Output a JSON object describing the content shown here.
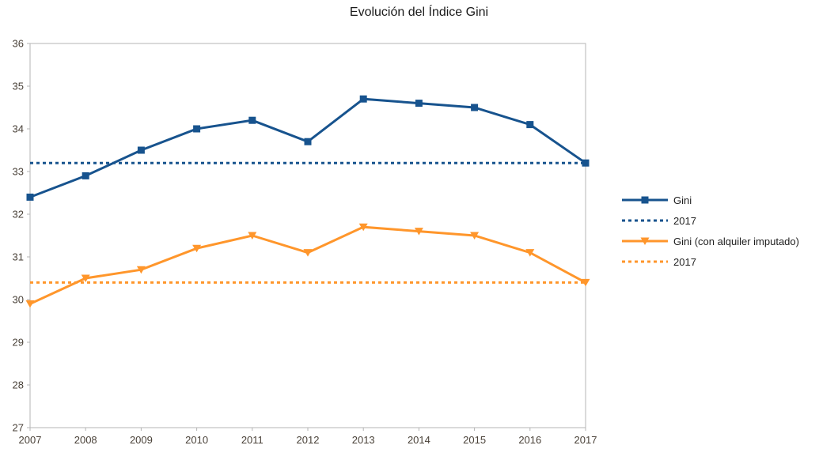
{
  "title": "Evolución del Índice Gini",
  "chart_data": {
    "type": "line",
    "title": "Evolución del Índice Gini",
    "x": [
      2007,
      2008,
      2009,
      2010,
      2011,
      2012,
      2013,
      2014,
      2015,
      2016,
      2017
    ],
    "ylim": [
      27,
      36
    ],
    "ytick_step": 1,
    "grid": false,
    "legend_position": "right",
    "axis_color": "#b5b5b5",
    "label_color": "#494138",
    "series": [
      {
        "name": "Gini",
        "kind": "line",
        "color": "#17538e",
        "marker": "square",
        "dash": "solid",
        "values": [
          32.4,
          32.9,
          33.5,
          34.0,
          34.2,
          33.7,
          34.7,
          34.6,
          34.5,
          34.1,
          33.2
        ]
      },
      {
        "name": "2017",
        "kind": "reference",
        "color": "#17538e",
        "marker": "none",
        "dash": "dashed",
        "value": 33.2
      },
      {
        "name": "Gini (con alquiler imputado)",
        "kind": "line",
        "color": "#ff962b",
        "marker": "triangle-down",
        "dash": "solid",
        "values": [
          29.9,
          30.5,
          30.7,
          31.2,
          31.5,
          31.1,
          31.7,
          31.6,
          31.5,
          31.1,
          30.4
        ]
      },
      {
        "name": "2017",
        "kind": "reference",
        "color": "#ff962b",
        "marker": "none",
        "dash": "dashed",
        "value": 30.4
      }
    ]
  }
}
